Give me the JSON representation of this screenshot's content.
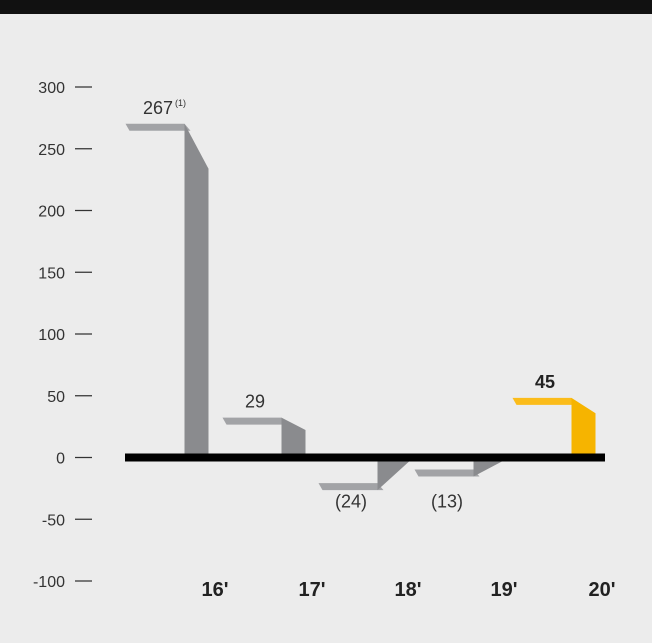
{
  "chart_data": {
    "type": "bar",
    "title": "",
    "xlabel": "",
    "ylabel": "",
    "categories": [
      "16'",
      "17'",
      "18'",
      "19'",
      "20'"
    ],
    "values": [
      267,
      29,
      -24,
      -13,
      45
    ],
    "value_labels": [
      "267",
      "29",
      "(24)",
      "(13)",
      "45"
    ],
    "value_footnotes": [
      "(1)",
      "",
      "",
      "",
      ""
    ],
    "yticks": [
      300,
      250,
      200,
      150,
      100,
      50,
      0,
      -50,
      -100
    ],
    "ytick_labels": [
      "300",
      "250",
      "200",
      "150",
      "100",
      "50",
      "0",
      "-50",
      "-100"
    ],
    "ylim": [
      -100,
      300
    ],
    "highlight_index": 4,
    "grid": false,
    "colors": {
      "bar": "#a2a3a6",
      "bar_side": "#8a8b8e",
      "highlight": "#fbbc1a",
      "highlight_side": "#f6b400",
      "zero_line": "#000000",
      "axis_tick": "#333333",
      "background": "#ececec"
    }
  }
}
